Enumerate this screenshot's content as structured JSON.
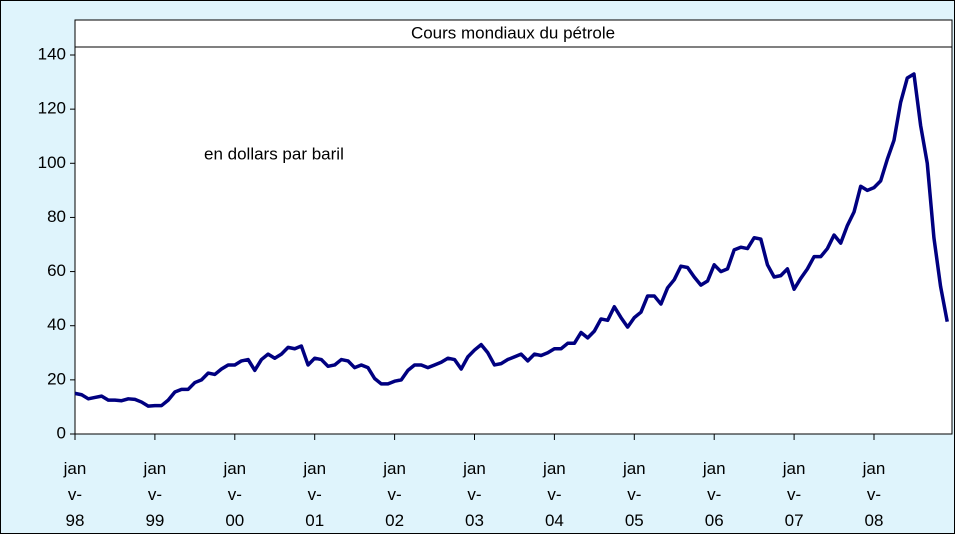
{
  "chart_data": {
    "type": "line",
    "title": "Cours mondiaux du pétrole",
    "annotation": "en dollars par baril",
    "categories": [
      "janv-98",
      null,
      null,
      null,
      null,
      null,
      null,
      null,
      null,
      null,
      null,
      null,
      "janv-99",
      null,
      null,
      null,
      null,
      null,
      null,
      null,
      null,
      null,
      null,
      null,
      "janv-00",
      null,
      null,
      null,
      null,
      null,
      null,
      null,
      null,
      null,
      null,
      null,
      "janv-01",
      null,
      null,
      null,
      null,
      null,
      null,
      null,
      null,
      null,
      null,
      null,
      "janv-02",
      null,
      null,
      null,
      null,
      null,
      null,
      null,
      null,
      null,
      null,
      null,
      "janv-03",
      null,
      null,
      null,
      null,
      null,
      null,
      null,
      null,
      null,
      null,
      null,
      "janv-04",
      null,
      null,
      null,
      null,
      null,
      null,
      null,
      null,
      null,
      null,
      null,
      "janv-05",
      null,
      null,
      null,
      null,
      null,
      null,
      null,
      null,
      null,
      null,
      null,
      "janv-06",
      null,
      null,
      null,
      null,
      null,
      null,
      null,
      null,
      null,
      null,
      null,
      "janv-07",
      null,
      null,
      null,
      null,
      null,
      null,
      null,
      null,
      null,
      null,
      null,
      "janv-08",
      null,
      null,
      null,
      null,
      null,
      null,
      null,
      null,
      null,
      null,
      null
    ],
    "values": [
      15,
      14.5,
      13,
      13.5,
      14,
      12.5,
      12.5,
      12.3,
      13,
      12.8,
      11.8,
      10.3,
      10.5,
      10.5,
      12.5,
      15.5,
      16.5,
      16.5,
      19,
      20,
      22.5,
      22,
      24,
      25.5,
      25.5,
      27,
      27.5,
      23.5,
      27.5,
      29.5,
      28,
      29.5,
      32,
      31.5,
      32.5,
      25.5,
      28,
      27.5,
      25,
      25.5,
      27.5,
      27,
      24.5,
      25.5,
      24.5,
      20.5,
      18.5,
      18.5,
      19.5,
      20,
      23.5,
      25.5,
      25.5,
      24.5,
      25.5,
      26.5,
      28,
      27.5,
      24,
      28.5,
      31,
      33,
      30,
      25.5,
      26,
      27.5,
      28.5,
      29.5,
      27,
      29.5,
      29,
      30,
      31.5,
      31.5,
      33.5,
      33.5,
      37.5,
      35.5,
      38,
      42.5,
      42,
      47,
      43,
      39.5,
      43,
      45,
      51,
      51,
      48,
      54,
      57,
      62,
      61.5,
      58,
      55,
      56.5,
      62.5,
      60,
      61,
      68,
      69,
      68.5,
      72.5,
      72,
      62.5,
      58,
      58.5,
      61,
      53.5,
      57.5,
      61,
      65.5,
      65.5,
      68.5,
      73.5,
      70.5,
      77,
      82,
      91.5,
      90,
      91,
      93.5,
      101.5,
      108.5,
      122.5,
      131.5,
      133,
      114,
      100,
      72.5,
      54.5,
      41.5
    ],
    "color": "#000080",
    "ylim": [
      0,
      140
    ],
    "yticks": [
      0,
      20,
      40,
      60,
      80,
      100,
      120,
      140
    ]
  }
}
